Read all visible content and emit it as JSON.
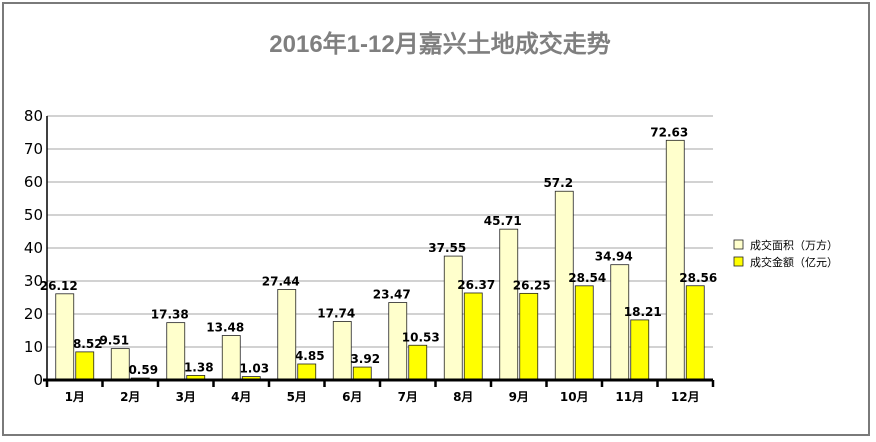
{
  "chart_data": {
    "type": "bar",
    "title": "2016年1-12月嘉兴土地成交走势",
    "xlabel": "",
    "ylabel": "",
    "ylim": [
      0,
      80
    ],
    "yticks": [
      0,
      10,
      20,
      30,
      40,
      50,
      60,
      70,
      80
    ],
    "grid": true,
    "legend_position": "right",
    "categories": [
      "1月",
      "2月",
      "3月",
      "4月",
      "5月",
      "6月",
      "7月",
      "8月",
      "9月",
      "10月",
      "11月",
      "12月"
    ],
    "series": [
      {
        "name": "成交面积（万方）",
        "color": "#ffffcc",
        "values": [
          26.12,
          9.51,
          17.38,
          13.48,
          27.44,
          17.74,
          23.47,
          37.55,
          45.71,
          57.2,
          34.94,
          72.63
        ],
        "labels": [
          "26.12",
          "9.51",
          "17.38",
          "13.48",
          "27.44",
          "17.74",
          "23.47",
          "37.55",
          "45.71",
          "57.2",
          "34.94",
          "72.63"
        ]
      },
      {
        "name": "成交金额（亿元）",
        "color": "#ffff00",
        "values": [
          8.52,
          0.59,
          1.38,
          1.03,
          4.85,
          3.92,
          10.53,
          26.37,
          26.25,
          28.54,
          18.21,
          28.56
        ],
        "labels": [
          "8.52",
          "0.59",
          "1.38",
          "1.03",
          "4.85",
          "3.92",
          "10.53",
          "26.37",
          "26.25",
          "28.54",
          "18.21",
          "28.56"
        ]
      }
    ]
  }
}
